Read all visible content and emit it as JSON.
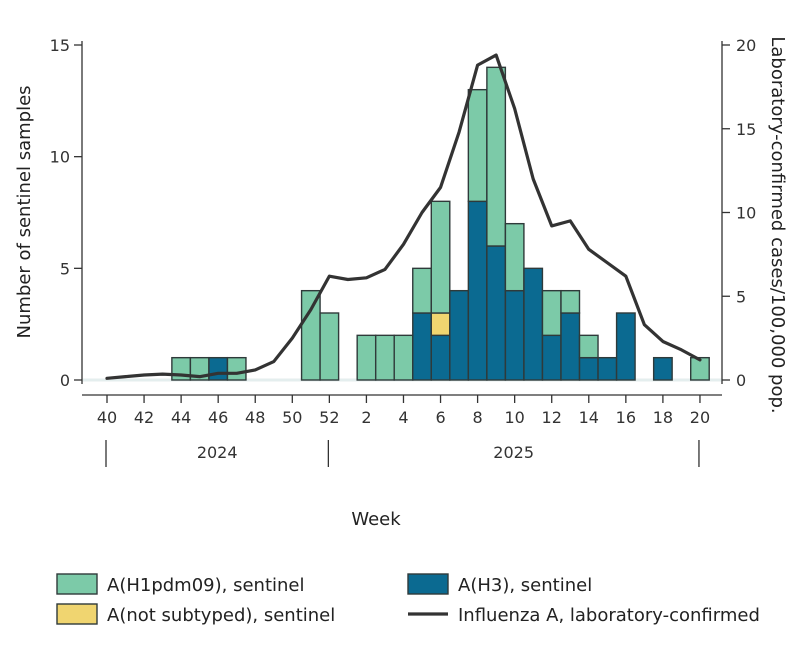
{
  "chart_data": {
    "type": "bar",
    "stacked": true,
    "weeks": [
      40,
      41,
      42,
      43,
      44,
      45,
      46,
      47,
      48,
      49,
      50,
      51,
      52,
      1,
      2,
      3,
      4,
      5,
      6,
      7,
      8,
      9,
      10,
      11,
      12,
      13,
      14,
      15,
      16,
      17,
      18,
      19,
      20
    ],
    "x_tick_labels": [
      "40",
      "42",
      "44",
      "46",
      "48",
      "50",
      "52",
      "2",
      "4",
      "6",
      "8",
      "10",
      "12",
      "14",
      "16",
      "18",
      "20"
    ],
    "year_labels": [
      "2024",
      "2025"
    ],
    "xlabel": "Week",
    "ylabel_left": "Number of sentinel samples",
    "ylabel_right": "Laboratory-confirmed cases/100,000 pop.",
    "ylim_left": [
      0,
      15
    ],
    "ylim_right": [
      0,
      20
    ],
    "yticks_left": [
      0,
      5,
      10,
      15
    ],
    "yticks_right": [
      0,
      5,
      10,
      15,
      20
    ],
    "series": [
      {
        "name": "A(H3), sentinel",
        "color": "#0b6a91",
        "values": [
          0,
          0,
          0,
          0,
          0,
          0,
          1,
          0,
          0,
          0,
          0,
          0,
          0,
          0,
          0,
          0,
          0,
          3,
          2,
          4,
          8,
          6,
          4,
          5,
          2,
          3,
          1,
          1,
          3,
          0,
          1,
          0,
          0
        ]
      },
      {
        "name": "A(not subtyped), sentinel",
        "color": "#f0d570",
        "values": [
          0,
          0,
          0,
          0,
          0,
          0,
          0,
          0,
          0,
          0,
          0,
          0,
          0,
          0,
          0,
          0,
          0,
          0,
          1,
          0,
          0,
          0,
          0,
          0,
          0,
          0,
          0,
          0,
          0,
          0,
          0,
          0,
          0
        ]
      },
      {
        "name": "A(H1pdm09), sentinel",
        "color": "#7ccaa8",
        "values": [
          0,
          0,
          0,
          0,
          1,
          1,
          0,
          1,
          0,
          0,
          0,
          4,
          3,
          0,
          2,
          2,
          2,
          2,
          5,
          0,
          5,
          8,
          3,
          0,
          2,
          1,
          1,
          0,
          0,
          0,
          0,
          0,
          1
        ]
      }
    ],
    "line": {
      "name": "Influenza A, laboratory-confirmed",
      "color": "#333333",
      "values": [
        0.1,
        0.2,
        0.3,
        0.35,
        0.3,
        0.2,
        0.4,
        0.4,
        0.6,
        1.1,
        2.5,
        4.2,
        6.2,
        6.0,
        6.1,
        6.6,
        8.1,
        10.0,
        11.5,
        14.8,
        18.8,
        19.4,
        16.2,
        12.0,
        9.2,
        9.5,
        7.8,
        7.0,
        6.2,
        3.3,
        2.3,
        1.8,
        1.2
      ]
    },
    "legend": [
      {
        "label": "A(H1pdm09), sentinel",
        "kind": "box",
        "color": "#7ccaa8"
      },
      {
        "label": "A(H3), sentinel",
        "kind": "box",
        "color": "#0b6a91"
      },
      {
        "label": "A(not subtyped), sentinel",
        "kind": "box",
        "color": "#f0d570"
      },
      {
        "label": "Influenza A, laboratory-confirmed",
        "kind": "line",
        "color": "#333333"
      }
    ]
  }
}
